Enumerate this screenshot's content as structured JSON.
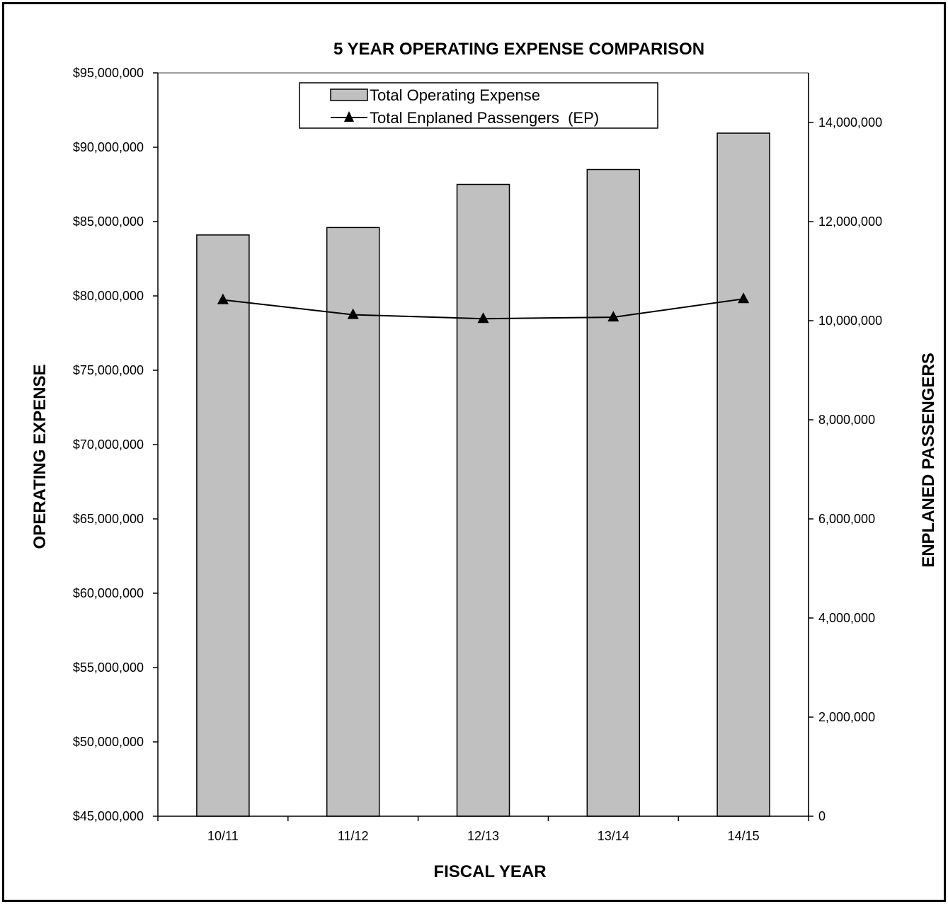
{
  "chart_data": {
    "type": "bar",
    "title": "5 YEAR OPERATING EXPENSE COMPARISON",
    "xlabel": "FISCAL YEAR",
    "ylabel": "OPERATING EXPENSE",
    "y2label": "ENPLANED PASSENGERS",
    "categories": [
      "10/11",
      "11/12",
      "12/13",
      "13/14",
      "14/15"
    ],
    "ylim": [
      45000000,
      95000000
    ],
    "y2lim": [
      0,
      15000000
    ],
    "yticks": [
      "$45,000,000",
      "$50,000,000",
      "$55,000,000",
      "$60,000,000",
      "$65,000,000",
      "$70,000,000",
      "$75,000,000",
      "$80,000,000",
      "$85,000,000",
      "$90,000,000",
      "$95,000,000"
    ],
    "y2ticks": [
      "0",
      "2,000,000",
      "4,000,000",
      "6,000,000",
      "8,000,000",
      "10,000,000",
      "12,000,000",
      "14,000,000"
    ],
    "series": [
      {
        "name": "Total Operating Expense",
        "kind": "bar",
        "axis": "left",
        "color": "#c0c0c0",
        "values": [
          84100000,
          84600000,
          87500000,
          88500000,
          90950000
        ]
      },
      {
        "name": "Total Enplaned Passengers  (EP)",
        "kind": "line",
        "axis": "right",
        "color": "#000000",
        "marker": "triangle",
        "values": [
          10420000,
          10120000,
          10040000,
          10070000,
          10440000
        ]
      }
    ],
    "legend": "top-center",
    "grid": false
  }
}
